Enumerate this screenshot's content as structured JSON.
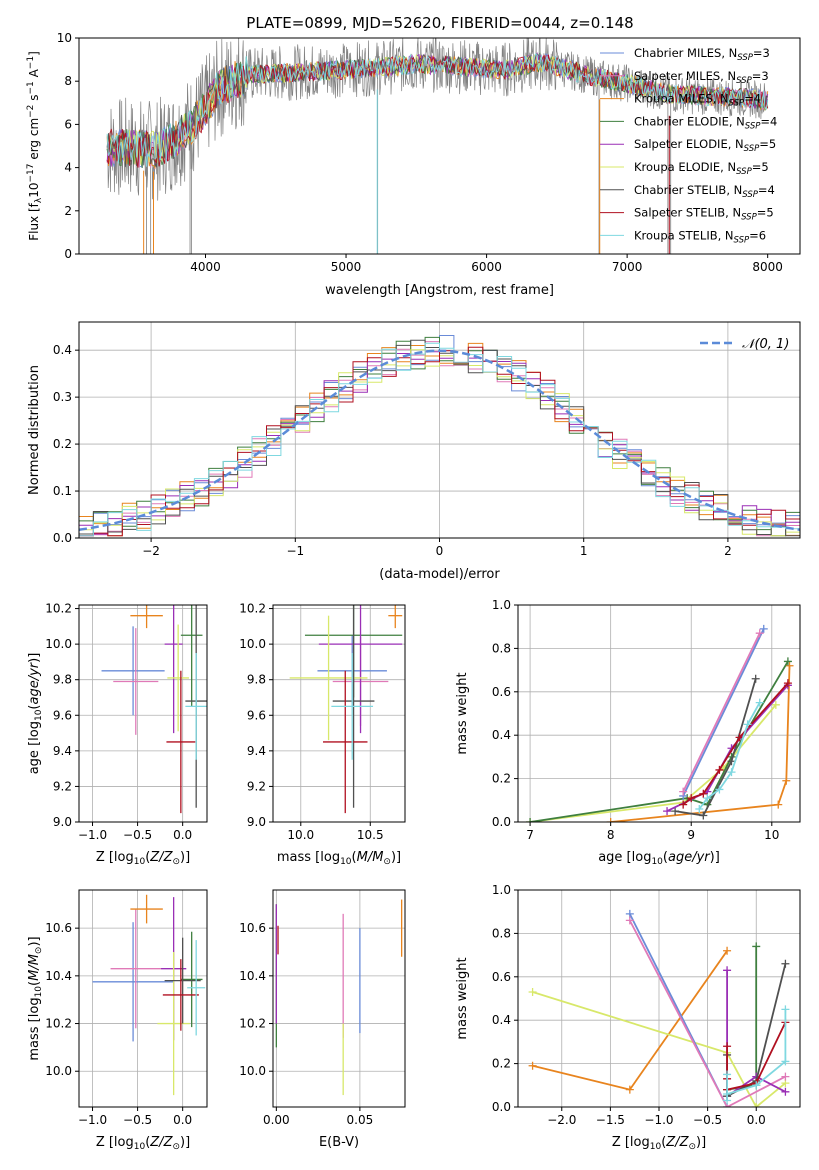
{
  "figure_title": "PLATE=0899, MJD=52620, FIBERID=0044, z=0.148",
  "colors": {
    "c1": "#6a8bd8",
    "c2": "#e8841e",
    "c3": "#e8841e",
    "c4": "#3f7f3f",
    "c5": "#9a2fb5",
    "c6": "#d8e86a",
    "c7": "#505050",
    "c8": "#b01020",
    "c9": "#7fd8e0",
    "pink": "#e07ab8",
    "data": "#808080"
  },
  "chart_data": [
    {
      "id": "spectrum",
      "type": "line",
      "xlabel": "wavelength [Angstrom, rest frame]",
      "ylabel_main": "Flux [f",
      "ylabel_sub": "λ",
      "ylabel_rest": "10",
      "ylabel_exp1": "−17",
      "ylabel_unit": " erg cm",
      "ylabel_exp2": "−2",
      "ylabel_unit2": " s",
      "ylabel_exp3": "−1",
      "ylabel_unit3": " A",
      "ylabel_exp4": "−1",
      "ylabel_end": "]",
      "xlim": [
        3100,
        8230
      ],
      "ylim": [
        0,
        10
      ],
      "xticks": [
        "4000",
        "5000",
        "6000",
        "7000",
        "8000"
      ],
      "yticks": [
        "0",
        "2",
        "4",
        "6",
        "8",
        "10"
      ],
      "legend": [
        {
          "name": "Chabrier MILES, N",
          "sub": "SSP",
          "tail": "=3",
          "color": "#6a8bd8"
        },
        {
          "name": "Salpeter MILES, N",
          "sub": "SSP",
          "tail": "=3",
          "color": "#e07ab8"
        },
        {
          "name": "Kroupa MILES, N",
          "sub": "SSP",
          "tail": "=4",
          "color": "#e8841e"
        },
        {
          "name": "Chabrier ELODIE, N",
          "sub": "SSP",
          "tail": "=4",
          "color": "#3f7f3f"
        },
        {
          "name": "Salpeter ELODIE, N",
          "sub": "SSP",
          "tail": "=5",
          "color": "#9a2fb5"
        },
        {
          "name": "Kroupa ELODIE, N",
          "sub": "SSP",
          "tail": "=5",
          "color": "#d8e86a"
        },
        {
          "name": "Chabrier STELIB, N",
          "sub": "SSP",
          "tail": "=4",
          "color": "#505050"
        },
        {
          "name": "Salpeter STELIB, N",
          "sub": "SSP",
          "tail": "=5",
          "color": "#b01020"
        },
        {
          "name": "Kroupa STELIB, N",
          "sub": "SSP",
          "tail": "=6",
          "color": "#7fd8e0"
        }
      ],
      "model_shape": {
        "x": [
          3300,
          3500,
          3650,
          3800,
          3950,
          4100,
          4300,
          4600,
          4900,
          5200,
          5500,
          5800,
          6100,
          6400,
          6700,
          7000,
          7300,
          7600,
          7900,
          8000
        ],
        "y": [
          4.9,
          4.9,
          4.8,
          5.4,
          6.3,
          7.7,
          8.3,
          8.4,
          8.5,
          8.6,
          8.8,
          8.7,
          8.5,
          8.9,
          8.3,
          7.9,
          7.4,
          7.3,
          7.2,
          7.1
        ]
      }
    },
    {
      "id": "residuals",
      "type": "step-histogram",
      "xlabel": "(data-model)/error",
      "ylabel": "Normed distribution",
      "xlim": [
        -2.5,
        2.5
      ],
      "ylim": [
        0,
        0.46
      ],
      "xticks": [
        "−2",
        "−1",
        "0",
        "1",
        "2"
      ],
      "yticks": [
        "0.0",
        "0.1",
        "0.2",
        "0.3",
        "0.4"
      ],
      "gaussian_label": "𝒩(0, 1)",
      "grid": true
    },
    {
      "id": "age-vs-Z",
      "type": "errorbar",
      "xlabel": "Z [log",
      "xlabel_sub": "10",
      "xlabel_rest": "(Z/Z",
      "xlabel_sub2": "⊙",
      "xlabel_end": ")]",
      "ylabel": "age  [log10(age/yr)]",
      "xlim": [
        -1.15,
        0.27
      ],
      "ylim": [
        9.0,
        10.22
      ],
      "xticks": [
        "−1.0",
        "−0.5",
        "0.0"
      ],
      "yticks": [
        "9.0",
        "9.2",
        "9.4",
        "9.6",
        "9.8",
        "10.0",
        "10.2"
      ],
      "points": [
        {
          "x": -0.55,
          "y": 9.85,
          "xe": 0.35,
          "ye": 0.25,
          "c": "#6a8bd8"
        },
        {
          "x": -0.52,
          "y": 9.79,
          "xe": 0.25,
          "ye": 0.3,
          "c": "#e07ab8"
        },
        {
          "x": -0.4,
          "y": 10.16,
          "xe": 0.18,
          "ye": 0.07,
          "c": "#e8841e"
        },
        {
          "x": 0.1,
          "y": 10.05,
          "xe": 0.12,
          "ye": 0.4,
          "c": "#3f7f3f"
        },
        {
          "x": -0.1,
          "y": 10.0,
          "xe": 0.1,
          "ye": 0.5,
          "c": "#9a2fb5"
        },
        {
          "x": -0.05,
          "y": 9.81,
          "xe": 0.12,
          "ye": 0.3,
          "c": "#d8e86a"
        },
        {
          "x": 0.15,
          "y": 9.68,
          "xe": 0.12,
          "ye": 0.6,
          "c": "#505050"
        },
        {
          "x": -0.02,
          "y": 9.45,
          "xe": 0.16,
          "ye": 0.4,
          "c": "#b01020"
        },
        {
          "x": 0.15,
          "y": 9.65,
          "xe": 0.12,
          "ye": 0.3,
          "c": "#7fd8e0"
        }
      ]
    },
    {
      "id": "age-vs-mass",
      "type": "errorbar",
      "xlabel": "mass [log10(M/M⊙)]",
      "xlim": [
        9.8,
        10.75
      ],
      "ylim": [
        9.0,
        10.22
      ],
      "xticks": [
        "10.0",
        "10.5"
      ],
      "yticks": [
        "9.0",
        "9.2",
        "9.4",
        "9.6",
        "9.8",
        "10.0",
        "10.2"
      ],
      "points": [
        {
          "x": 10.37,
          "y": 9.85,
          "xe": 0.25,
          "ye": 0.2,
          "c": "#6a8bd8"
        },
        {
          "x": 10.43,
          "y": 9.79,
          "xe": 0.2,
          "ye": 0.25,
          "c": "#e07ab8"
        },
        {
          "x": 10.68,
          "y": 10.16,
          "xe": 0.05,
          "ye": 0.07,
          "c": "#e8841e"
        },
        {
          "x": 10.38,
          "y": 10.05,
          "xe": 0.35,
          "ye": 0.35,
          "c": "#3f7f3f"
        },
        {
          "x": 10.43,
          "y": 10.0,
          "xe": 0.3,
          "ye": 0.5,
          "c": "#9a2fb5"
        },
        {
          "x": 10.2,
          "y": 9.81,
          "xe": 0.28,
          "ye": 0.35,
          "c": "#d8e86a"
        },
        {
          "x": 10.38,
          "y": 9.68,
          "xe": 0.15,
          "ye": 0.6,
          "c": "#505050"
        },
        {
          "x": 10.32,
          "y": 9.45,
          "xe": 0.16,
          "ye": 0.4,
          "c": "#b01020"
        },
        {
          "x": 10.37,
          "y": 9.65,
          "xe": 0.15,
          "ye": 0.3,
          "c": "#7fd8e0"
        }
      ]
    },
    {
      "id": "massweight-vs-age",
      "type": "line",
      "xlabel": "age  [log10(age/yr)]",
      "ylabel": "mass weight",
      "xlim": [
        6.85,
        10.35
      ],
      "ylim": [
        0,
        1.0
      ],
      "xticks": [
        "7",
        "8",
        "9",
        "10"
      ],
      "yticks": [
        "0.0",
        "0.2",
        "0.4",
        "0.6",
        "0.8",
        "1.0"
      ],
      "series": [
        {
          "c": "#e8841e",
          "x": [
            8.0,
            10.08,
            10.18,
            10.22
          ],
          "y": [
            0.0,
            0.08,
            0.19,
            0.72
          ]
        },
        {
          "c": "#d8e86a",
          "x": [
            7.0,
            8.9,
            9.4,
            10.05
          ],
          "y": [
            0.0,
            0.09,
            0.25,
            0.54
          ]
        },
        {
          "c": "#3f7f3f",
          "x": [
            7.0,
            8.95,
            9.2,
            9.5,
            10.2
          ],
          "y": [
            0.0,
            0.11,
            0.08,
            0.3,
            0.74
          ]
        },
        {
          "c": "#505050",
          "x": [
            8.8,
            9.15,
            9.5,
            9.8
          ],
          "y": [
            0.05,
            0.03,
            0.28,
            0.66
          ]
        },
        {
          "c": "#6a8bd8",
          "x": [
            8.9,
            9.9
          ],
          "y": [
            0.12,
            0.89
          ]
        },
        {
          "c": "#e07ab8",
          "x": [
            8.9,
            9.85
          ],
          "y": [
            0.14,
            0.87
          ]
        },
        {
          "c": "#9a2fb5",
          "x": [
            8.7,
            9.2,
            9.5,
            10.2
          ],
          "y": [
            0.05,
            0.14,
            0.34,
            0.63
          ]
        },
        {
          "c": "#b01020",
          "x": [
            8.9,
            9.0,
            9.15,
            9.35,
            9.6,
            10.2
          ],
          "y": [
            0.08,
            0.11,
            0.13,
            0.24,
            0.39,
            0.64
          ]
        },
        {
          "c": "#7fd8e0",
          "x": [
            9.1,
            9.2,
            9.35,
            9.5,
            9.7,
            9.85
          ],
          "y": [
            0.06,
            0.11,
            0.15,
            0.23,
            0.45,
            0.55
          ]
        }
      ]
    },
    {
      "id": "mass-vs-Z",
      "type": "errorbar",
      "xlabel": "Z [log10(Z/Z⊙)]",
      "ylabel": "mass [log10(M/M⊙)]",
      "xlim": [
        -1.15,
        0.27
      ],
      "ylim": [
        9.85,
        10.76
      ],
      "xticks": [
        "−1.0",
        "−0.5",
        "0.0"
      ],
      "yticks": [
        "10.0",
        "10.2",
        "10.4",
        "10.6"
      ],
      "points": [
        {
          "x": -0.55,
          "y": 10.375,
          "xe": 0.45,
          "ye": 0.25,
          "c": "#6a8bd8"
        },
        {
          "x": -0.52,
          "y": 10.43,
          "xe": 0.28,
          "ye": 0.25,
          "c": "#e07ab8"
        },
        {
          "x": -0.4,
          "y": 10.68,
          "xe": 0.18,
          "ye": 0.06,
          "c": "#e8841e"
        },
        {
          "x": 0.1,
          "y": 10.385,
          "xe": 0.12,
          "ye": 0.2,
          "c": "#3f7f3f"
        },
        {
          "x": -0.1,
          "y": 10.43,
          "xe": 0.14,
          "ye": 0.3,
          "c": "#9a2fb5"
        },
        {
          "x": -0.1,
          "y": 10.2,
          "xe": 0.18,
          "ye": 0.3,
          "c": "#d8e86a"
        },
        {
          "x": 0.0,
          "y": 10.38,
          "xe": 0.2,
          "ye": 0.18,
          "c": "#505050"
        },
        {
          "x": -0.02,
          "y": 10.32,
          "xe": 0.2,
          "ye": 0.15,
          "c": "#b01020"
        },
        {
          "x": 0.15,
          "y": 10.35,
          "xe": 0.1,
          "ye": 0.2,
          "c": "#7fd8e0"
        }
      ]
    },
    {
      "id": "mass-vs-EBV",
      "type": "errorbar",
      "xlabel": "E(B-V)",
      "xlim": [
        -0.002,
        0.077
      ],
      "ylim": [
        9.85,
        10.76
      ],
      "xticks": [
        "0.00",
        "0.05"
      ],
      "yticks": [
        "10.0",
        "10.2",
        "10.4",
        "10.6"
      ],
      "points": [
        {
          "x": 0.0,
          "y": 10.4,
          "xe": 0.0,
          "ye": 0.3,
          "c": "#3f7f3f"
        },
        {
          "x": 0.0,
          "y": 10.45,
          "xe": 0.0,
          "ye": 0.25,
          "c": "#9a2fb5"
        },
        {
          "x": 0.001,
          "y": 10.55,
          "xe": 0.0,
          "ye": 0.06,
          "c": "#b01020"
        },
        {
          "x": 0.04,
          "y": 10.4,
          "xe": 0.0,
          "ye": 0.26,
          "c": "#e07ab8"
        },
        {
          "x": 0.04,
          "y": 10.05,
          "xe": 0.0,
          "ye": 0.15,
          "c": "#d8e86a"
        },
        {
          "x": 0.05,
          "y": 10.38,
          "xe": 0.0,
          "ye": 0.22,
          "c": "#6a8bd8"
        },
        {
          "x": 0.075,
          "y": 10.6,
          "xe": 0.0,
          "ye": 0.12,
          "c": "#e8841e"
        }
      ]
    },
    {
      "id": "massweight-vs-Z",
      "type": "line",
      "xlabel": "Z [log10(Z/Z⊙)]",
      "ylabel": "mass weight",
      "xlim": [
        -2.45,
        0.45
      ],
      "ylim": [
        0,
        1.0
      ],
      "xticks": [
        "−2.0",
        "−1.5",
        "−1.0",
        "−0.5",
        "0.0"
      ],
      "yticks": [
        "0.0",
        "0.2",
        "0.4",
        "0.6",
        "0.8",
        "1.0"
      ],
      "series": [
        {
          "c": "#e8841e",
          "x": [
            -2.3,
            -1.3,
            -0.3
          ],
          "y": [
            0.19,
            0.08,
            0.72
          ]
        },
        {
          "c": "#d8e86a",
          "x": [
            -2.3,
            -0.3,
            0.0,
            0.3
          ],
          "y": [
            0.53,
            0.25,
            0.0,
            0.11
          ]
        },
        {
          "c": "#6a8bd8",
          "x": [
            -1.3,
            -0.3
          ],
          "y": [
            0.89,
            0.0
          ]
        },
        {
          "c": "#e07ab8",
          "x": [
            -1.3,
            -0.3,
            0.3
          ],
          "y": [
            0.86,
            0.0,
            0.14
          ]
        },
        {
          "c": "#3f7f3f",
          "x": [
            0.0,
            0.0,
            -0.3,
            -0.3
          ],
          "y": [
            0.74,
            0.1,
            0.08,
            0.05
          ]
        },
        {
          "c": "#9a2fb5",
          "x": [
            -0.3,
            -0.3,
            0.0,
            0.3
          ],
          "y": [
            0.63,
            0.05,
            0.14,
            0.07
          ]
        },
        {
          "c": "#505050",
          "x": [
            0.3,
            0.0,
            -0.3,
            -0.3
          ],
          "y": [
            0.66,
            0.12,
            0.05,
            0.24
          ]
        },
        {
          "c": "#b01020",
          "x": [
            0.3,
            0.0,
            -0.3,
            -0.3,
            -0.3
          ],
          "y": [
            0.39,
            0.11,
            0.08,
            0.13,
            0.28
          ]
        },
        {
          "c": "#7fd8e0",
          "x": [
            0.3,
            0.3,
            0.0,
            -0.3,
            -0.3,
            -0.3
          ],
          "y": [
            0.45,
            0.21,
            0.1,
            0.06,
            0.03,
            0.15
          ]
        }
      ]
    }
  ]
}
